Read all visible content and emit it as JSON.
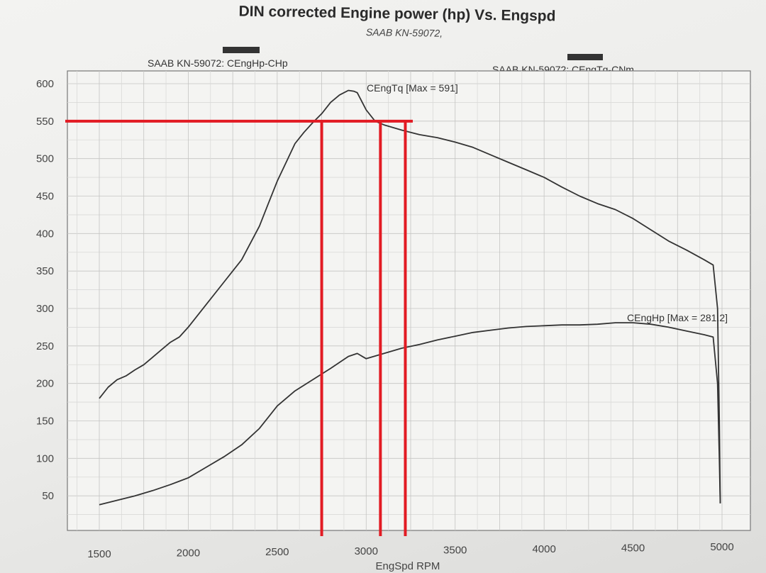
{
  "chart_data": {
    "type": "line",
    "title": "DIN corrected Engine power (hp) Vs. Engspd",
    "subtitle": "SAAB KN-59072,",
    "xlabel": "EngSpd RPM",
    "ylabel": "",
    "xlim": [
      1500,
      5000
    ],
    "ylim": [
      0,
      600
    ],
    "x_ticks": [
      "1500",
      "2000",
      "2500",
      "3000",
      "3500",
      "4000",
      "4500",
      "5000"
    ],
    "y_ticks": [
      "50",
      "100",
      "150",
      "200",
      "250",
      "300",
      "350",
      "400",
      "450",
      "500",
      "550",
      "600"
    ],
    "grid": true,
    "legend": [
      {
        "name": "SAAB KN-59072: CEngHp-CHp",
        "color": "#333333"
      },
      {
        "name": "SAAB KN-59072: CEngTq-CNm",
        "color": "#333333"
      }
    ],
    "series": [
      {
        "name": "CEngTq",
        "annotation": "CEngTq [Max = 591]",
        "color": "#333333",
        "x": [
          1500,
          1550,
          1600,
          1650,
          1700,
          1750,
          1800,
          1850,
          1900,
          1950,
          2000,
          2100,
          2200,
          2300,
          2400,
          2450,
          2500,
          2550,
          2600,
          2650,
          2700,
          2750,
          2800,
          2850,
          2900,
          2930,
          2950,
          3000,
          3050,
          3100,
          3200,
          3300,
          3400,
          3500,
          3600,
          3700,
          3800,
          3900,
          4000,
          4100,
          4200,
          4300,
          4400,
          4500,
          4600,
          4700,
          4800,
          4900,
          4950,
          4975,
          4985,
          4990
        ],
        "y": [
          180,
          195,
          205,
          210,
          218,
          225,
          235,
          245,
          255,
          262,
          275,
          305,
          335,
          365,
          410,
          440,
          470,
          495,
          520,
          535,
          548,
          560,
          575,
          585,
          591,
          590,
          588,
          565,
          550,
          545,
          538,
          532,
          528,
          522,
          515,
          505,
          495,
          485,
          475,
          462,
          450,
          440,
          432,
          420,
          405,
          390,
          378,
          365,
          358,
          300,
          150,
          40
        ]
      },
      {
        "name": "CEngHp",
        "annotation": "CEngHp [Max = 281.2]",
        "color": "#333333",
        "x": [
          1500,
          1600,
          1700,
          1800,
          1900,
          2000,
          2100,
          2200,
          2300,
          2400,
          2500,
          2600,
          2700,
          2800,
          2900,
          2950,
          3000,
          3100,
          3200,
          3300,
          3400,
          3500,
          3600,
          3700,
          3800,
          3900,
          4000,
          4100,
          4200,
          4300,
          4400,
          4500,
          4600,
          4700,
          4800,
          4900,
          4950,
          4975,
          4985,
          4990
        ],
        "y": [
          38,
          44,
          50,
          57,
          65,
          74,
          88,
          102,
          118,
          140,
          170,
          190,
          205,
          220,
          236,
          240,
          233,
          240,
          247,
          252,
          258,
          263,
          268,
          271,
          274,
          276,
          277,
          278,
          278,
          279,
          281,
          281,
          279,
          275,
          270,
          265,
          262,
          200,
          100,
          40
        ]
      }
    ],
    "markup_lines": {
      "color": "#e21b23",
      "horizontal_y": [
        550
      ],
      "vertical_x": [
        2750,
        3080,
        3220
      ]
    }
  }
}
